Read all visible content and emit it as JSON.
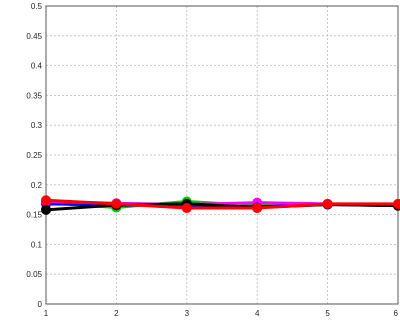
{
  "chart_data": {
    "type": "line",
    "title": "",
    "xlabel": "",
    "ylabel": "",
    "x": [
      1,
      2,
      3,
      4,
      5,
      6
    ],
    "xlim": [
      1,
      6
    ],
    "ylim": [
      0,
      0.5
    ],
    "x_ticks": [
      1,
      2,
      3,
      4,
      5,
      6
    ],
    "x_tick_labels": [
      "1",
      "2",
      "3",
      "4",
      "5",
      "6"
    ],
    "y_ticks": [
      0,
      0.05,
      0.1,
      0.15,
      0.2,
      0.25,
      0.3,
      0.35,
      0.4,
      0.45,
      0.5
    ],
    "y_tick_labels": [
      "0",
      "0.05",
      "0.1",
      "0.15",
      "0.2",
      "0.25",
      "0.3",
      "0.35",
      "0.4",
      "0.45",
      "0.5"
    ],
    "grid": true,
    "legend": "none",
    "series": [
      {
        "color": "#00c800",
        "values": [
          0.17,
          0.162,
          0.172,
          0.165,
          0.168,
          0.166
        ]
      },
      {
        "color": "#0000ff",
        "values": [
          0.168,
          0.166,
          0.165,
          0.163,
          0.167,
          0.165
        ]
      },
      {
        "color": "#ff00ff",
        "values": [
          0.172,
          0.169,
          0.167,
          0.17,
          0.168,
          0.167
        ]
      },
      {
        "color": "#000000",
        "values": [
          0.158,
          0.166,
          0.168,
          0.162,
          0.167,
          0.165
        ]
      },
      {
        "color": "#ff0000",
        "values": [
          0.174,
          0.168,
          0.161,
          0.161,
          0.168,
          0.168
        ]
      }
    ]
  }
}
